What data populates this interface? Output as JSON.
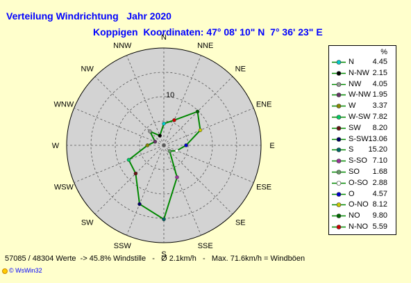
{
  "header": {
    "title": "Verteilung Windrichtung   Jahr 2020",
    "subtitle": "Koppigen  Koordinaten: 47° 08' 10\" N  7° 36' 23\" E"
  },
  "chart_data": {
    "type": "radar",
    "directions": [
      "N",
      "NNE",
      "NE",
      "ENE",
      "E",
      "ESE",
      "SE",
      "SSE",
      "S",
      "SSW",
      "SW",
      "WSW",
      "W",
      "WNW",
      "NW",
      "NNW"
    ],
    "ring_label": "10",
    "r_max": 20,
    "ring_step": 5,
    "grid": true,
    "background": "#d3d3d3",
    "line_color": "#008800",
    "legend_header": "%",
    "legend_position": "right",
    "series": [
      {
        "name": "N",
        "value": 4.45,
        "color": "#00cccc",
        "dir": "N"
      },
      {
        "name": "N-NW",
        "value": 2.15,
        "color": "#000000",
        "dir": "NNW"
      },
      {
        "name": "NW",
        "value": 4.05,
        "color": "#999999",
        "dir": "NW"
      },
      {
        "name": "W-NW",
        "value": 1.95,
        "color": "#663366",
        "dir": "WNW"
      },
      {
        "name": "W",
        "value": 3.37,
        "color": "#888800",
        "dir": "W"
      },
      {
        "name": "W-SW",
        "value": 7.82,
        "color": "#00cc66",
        "dir": "WSW"
      },
      {
        "name": "SW",
        "value": 8.2,
        "color": "#661111",
        "dir": "SW"
      },
      {
        "name": "S-SW",
        "value": 13.06,
        "color": "#000066",
        "dir": "SSW"
      },
      {
        "name": "S",
        "value": 15.2,
        "color": "#006666",
        "dir": "S"
      },
      {
        "name": "S-SO",
        "value": 7.1,
        "color": "#993399",
        "dir": "SSE"
      },
      {
        "name": "SO",
        "value": 1.68,
        "color": "#669966",
        "dir": "SE"
      },
      {
        "name": "O-SO",
        "value": 2.88,
        "color": "#ffffff",
        "dir": "ESE"
      },
      {
        "name": "O",
        "value": 4.57,
        "color": "#0000cc",
        "dir": "E"
      },
      {
        "name": "O-NO",
        "value": 8.12,
        "color": "#cccc00",
        "dir": "ENE"
      },
      {
        "name": "NO",
        "value": 9.8,
        "color": "#006600",
        "dir": "NE"
      },
      {
        "name": "N-NO",
        "value": 5.59,
        "color": "#cc0000",
        "dir": "NNE"
      }
    ]
  },
  "footer": {
    "stats": "57085 / 48304 Werte  -> 45.8% Windstille   -   Ø 2.1km/h   -   Max. 71.6km/h = Windböen"
  },
  "brand": {
    "label": "© WsWin32"
  }
}
